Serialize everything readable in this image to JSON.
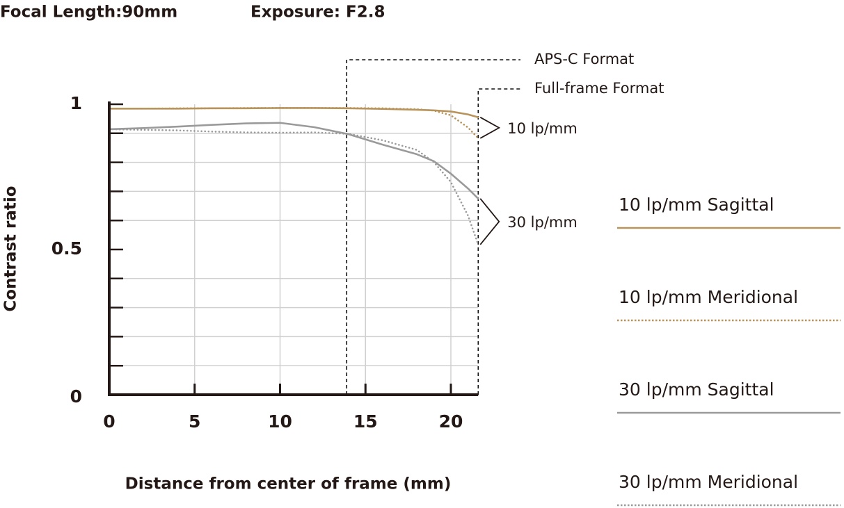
{
  "chart_data": {
    "type": "line",
    "header": [
      "Focal Length:90mm",
      "Exposure: F2.8"
    ],
    "ylabel": "Contrast ratio",
    "xlabel": "Distance from center of frame (mm)",
    "x": [
      0,
      2,
      4,
      6,
      8,
      10,
      12,
      14,
      16,
      18,
      19,
      20,
      21,
      21.6
    ],
    "series": [
      {
        "name": "10 lp/mm Sagittal",
        "color": "#b8935a",
        "style": "solid",
        "values": [
          0.985,
          0.985,
          0.985,
          0.986,
          0.986,
          0.987,
          0.987,
          0.986,
          0.984,
          0.981,
          0.979,
          0.975,
          0.965,
          0.955
        ]
      },
      {
        "name": "10 lp/mm Meridional",
        "color": "#b8935a",
        "style": "dotted",
        "values": [
          0.985,
          0.985,
          0.986,
          0.986,
          0.987,
          0.987,
          0.987,
          0.987,
          0.986,
          0.983,
          0.978,
          0.962,
          0.92,
          0.883
        ]
      },
      {
        "name": "30 lp/mm Sagittal",
        "color": "#9a9a9a",
        "style": "solid",
        "values": [
          0.914,
          0.918,
          0.923,
          0.929,
          0.934,
          0.936,
          0.921,
          0.897,
          0.861,
          0.828,
          0.804,
          0.761,
          0.71,
          0.675
        ]
      },
      {
        "name": "30 lp/mm Meridional",
        "color": "#9a9a9a",
        "style": "dotted",
        "values": [
          0.914,
          0.912,
          0.91,
          0.906,
          0.903,
          0.902,
          0.903,
          0.898,
          0.876,
          0.843,
          0.801,
          0.732,
          0.617,
          0.517
        ]
      }
    ],
    "groups": [
      {
        "label": "10 lp/mm",
        "series": [
          0,
          1
        ]
      },
      {
        "label": "30 lp/mm",
        "series": [
          2,
          3
        ]
      }
    ],
    "format_lines": [
      {
        "label": "APS-C Format",
        "x": 13.9
      },
      {
        "label": "Full-frame Format",
        "x": 21.6
      }
    ],
    "xlim": [
      0,
      21.6
    ],
    "ylim": [
      0,
      1
    ],
    "xticks": [
      0,
      5,
      10,
      15,
      20
    ],
    "yticks": [
      0,
      0.5,
      1
    ],
    "yminorticks": [
      0.1,
      0.2,
      0.3,
      0.4,
      0.6,
      0.7,
      0.8,
      0.9
    ],
    "grid": true
  }
}
